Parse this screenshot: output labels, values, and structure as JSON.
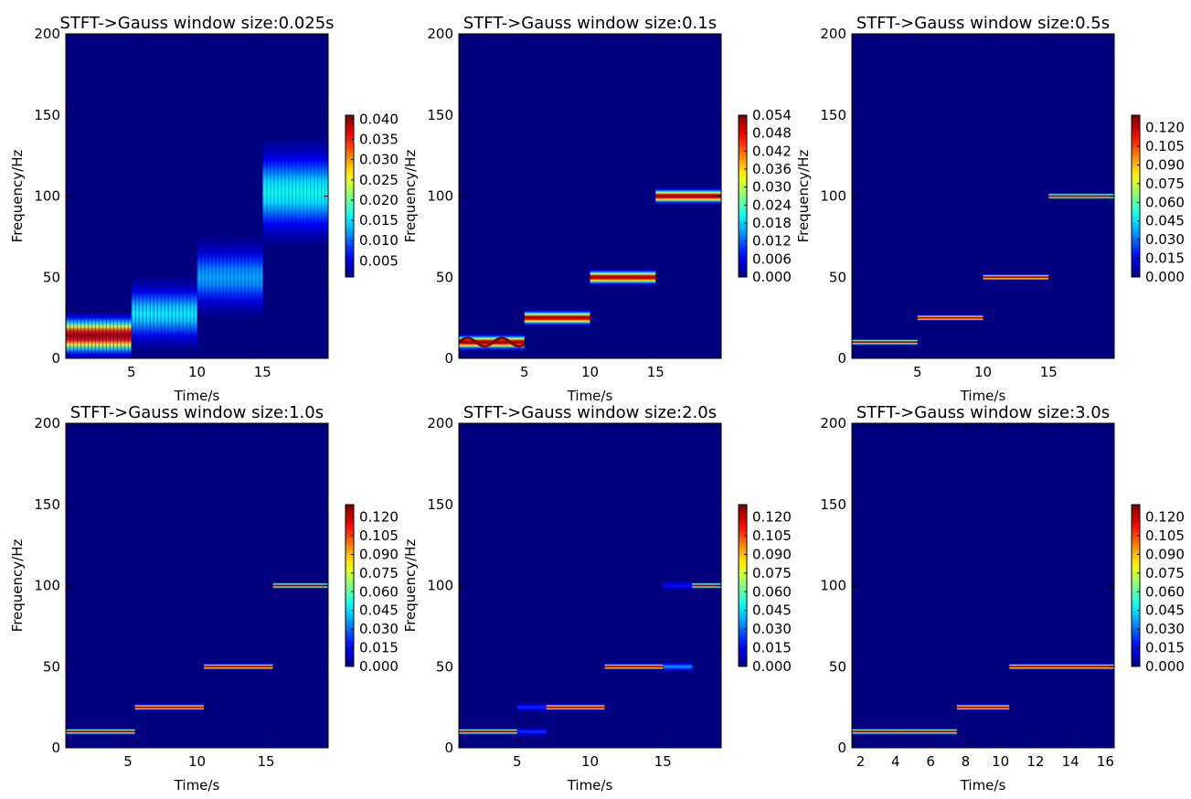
{
  "figure": {
    "background": "#ffffff",
    "plot_background": "#00007f"
  },
  "colormap": "jet",
  "chart_data": [
    {
      "type": "heatmap",
      "title": "STFT->Gauss window size:0.025s",
      "xlabel": "Time/s",
      "ylabel": "Frequency/Hz",
      "xlim": [
        0,
        20
      ],
      "ylim": [
        0,
        200
      ],
      "xticks": [
        5,
        10,
        15
      ],
      "yticks": [
        0,
        50,
        100,
        150,
        200
      ],
      "colorbar": {
        "range": [
          0.001,
          0.041
        ],
        "ticks": [
          "0.005",
          "0.010",
          "0.015",
          "0.020",
          "0.025",
          "0.030",
          "0.035",
          "0.040"
        ]
      },
      "bands": [
        {
          "t0": 0,
          "t1": 5,
          "f_low": 0,
          "f_high": 28,
          "peak": 0.04,
          "spread": "broad",
          "vertical_striations": true
        },
        {
          "t0": 5,
          "t1": 10,
          "f_low": 5,
          "f_high": 50,
          "peak": 0.015,
          "spread": "broad",
          "vertical_striations": true
        },
        {
          "t0": 10,
          "t1": 15,
          "f_low": 25,
          "f_high": 75,
          "peak": 0.012,
          "spread": "broad",
          "vertical_striations": true
        },
        {
          "t0": 15,
          "t1": 20,
          "f_low": 70,
          "f_high": 135,
          "peak": 0.016,
          "spread": "broad",
          "vertical_striations": true
        }
      ]
    },
    {
      "type": "heatmap",
      "title": "STFT->Gauss window size:0.1s",
      "xlabel": "Time/s",
      "ylabel": "Frequency/Hz",
      "xlim": [
        0,
        20
      ],
      "ylim": [
        0,
        200
      ],
      "xticks": [
        5,
        10,
        15
      ],
      "yticks": [
        0,
        50,
        100,
        150,
        200
      ],
      "colorbar": {
        "range": [
          0,
          0.054
        ],
        "ticks": [
          "0.000",
          "0.006",
          "0.012",
          "0.018",
          "0.024",
          "0.030",
          "0.036",
          "0.042",
          "0.048",
          "0.054"
        ]
      },
      "bands": [
        {
          "t0": 0,
          "t1": 5,
          "freq": 10,
          "half_width": 5,
          "peak": 0.054,
          "wavy": true
        },
        {
          "t0": 5,
          "t1": 10,
          "freq": 25,
          "half_width": 5,
          "peak": 0.054
        },
        {
          "t0": 10,
          "t1": 15,
          "freq": 50,
          "half_width": 5,
          "peak": 0.054
        },
        {
          "t0": 15,
          "t1": 20,
          "freq": 100,
          "half_width": 5,
          "peak": 0.054
        }
      ]
    },
    {
      "type": "heatmap",
      "title": "STFT->Gauss window size:0.5s",
      "xlabel": "Time/s",
      "ylabel": "Frequency/Hz",
      "xlim": [
        0,
        20
      ],
      "ylim": [
        0,
        200
      ],
      "xticks": [
        5,
        10,
        15
      ],
      "yticks": [
        0,
        50,
        100,
        150,
        200
      ],
      "colorbar": {
        "range": [
          0,
          0.13
        ],
        "ticks": [
          "0.000",
          "0.015",
          "0.030",
          "0.045",
          "0.060",
          "0.075",
          "0.090",
          "0.105",
          "0.120"
        ]
      },
      "bands": [
        {
          "t0": 0,
          "t1": 5,
          "freq": 10,
          "half_width": 2,
          "peak": 0.13
        },
        {
          "t0": 5,
          "t1": 10,
          "freq": 25,
          "half_width": 2,
          "peak": 0.13
        },
        {
          "t0": 10,
          "t1": 15,
          "freq": 50,
          "half_width": 2,
          "peak": 0.13
        },
        {
          "t0": 15,
          "t1": 20,
          "freq": 100,
          "half_width": 2,
          "peak": 0.13
        }
      ]
    },
    {
      "type": "heatmap",
      "title": "STFT->Gauss window size:1.0s",
      "xlabel": "Time/s",
      "ylabel": "Frequency/Hz",
      "xlim": [
        0.5,
        19.5
      ],
      "ylim": [
        0,
        200
      ],
      "xticks": [
        5,
        10,
        15
      ],
      "yticks": [
        0,
        50,
        100,
        150,
        200
      ],
      "colorbar": {
        "range": [
          0,
          0.13
        ],
        "ticks": [
          "0.000",
          "0.015",
          "0.030",
          "0.045",
          "0.060",
          "0.075",
          "0.090",
          "0.105",
          "0.120"
        ]
      },
      "bands": [
        {
          "t0": 0.5,
          "t1": 5.5,
          "freq": 10,
          "half_width": 2,
          "peak": 0.13
        },
        {
          "t0": 5.5,
          "t1": 10.5,
          "freq": 25,
          "half_width": 2,
          "peak": 0.13
        },
        {
          "t0": 10.5,
          "t1": 15.5,
          "freq": 50,
          "half_width": 2,
          "peak": 0.13
        },
        {
          "t0": 15.5,
          "t1": 19.5,
          "freq": 100,
          "half_width": 2,
          "peak": 0.13
        }
      ]
    },
    {
      "type": "heatmap",
      "title": "STFT->Gauss window size:2.0s",
      "xlabel": "Time/s",
      "ylabel": "Frequency/Hz",
      "xlim": [
        1,
        19
      ],
      "ylim": [
        0,
        200
      ],
      "xticks": [
        5,
        10,
        15
      ],
      "yticks": [
        0,
        50,
        100,
        150,
        200
      ],
      "colorbar": {
        "range": [
          0,
          0.13
        ],
        "ticks": [
          "0.000",
          "0.015",
          "0.030",
          "0.045",
          "0.060",
          "0.075",
          "0.090",
          "0.105",
          "0.120"
        ]
      },
      "bands": [
        {
          "t0": 1,
          "t1": 5,
          "freq": 10,
          "half_width": 2,
          "peak": 0.13
        },
        {
          "t0": 5,
          "t1": 7,
          "freq": 10,
          "half_width": 3,
          "peak": 0.022
        },
        {
          "t0": 5,
          "t1": 7,
          "freq": 25,
          "half_width": 3,
          "peak": 0.022
        },
        {
          "t0": 7,
          "t1": 11,
          "freq": 25,
          "half_width": 2,
          "peak": 0.13
        },
        {
          "t0": 11,
          "t1": 15,
          "freq": 50,
          "half_width": 2,
          "peak": 0.13
        },
        {
          "t0": 15,
          "t1": 17,
          "freq": 50,
          "half_width": 3,
          "peak": 0.035
        },
        {
          "t0": 15,
          "t1": 17,
          "freq": 100,
          "half_width": 3,
          "peak": 0.018
        },
        {
          "t0": 17,
          "t1": 19,
          "freq": 100,
          "half_width": 2,
          "peak": 0.13
        }
      ]
    },
    {
      "type": "heatmap",
      "title": "STFT->Gauss window size:3.0s",
      "xlabel": "Time/s",
      "ylabel": "",
      "xlim": [
        1.5,
        16.5
      ],
      "ylim": [
        0,
        200
      ],
      "xticks": [
        2,
        4,
        6,
        8,
        10,
        12,
        14,
        16
      ],
      "yticks": [
        0,
        50,
        100,
        150,
        200
      ],
      "colorbar": {
        "range": [
          0,
          0.13
        ],
        "ticks": [
          "0.000",
          "0.015",
          "0.030",
          "0.045",
          "0.060",
          "0.075",
          "0.090",
          "0.105",
          "0.120"
        ]
      },
      "bands": [
        {
          "t0": 1.5,
          "t1": 7.5,
          "freq": 10,
          "half_width": 2,
          "peak": 0.13
        },
        {
          "t0": 7.5,
          "t1": 10.5,
          "freq": 25,
          "half_width": 2,
          "peak": 0.13
        },
        {
          "t0": 10.5,
          "t1": 16.5,
          "freq": 50,
          "half_width": 2,
          "peak": 0.13
        }
      ]
    }
  ]
}
